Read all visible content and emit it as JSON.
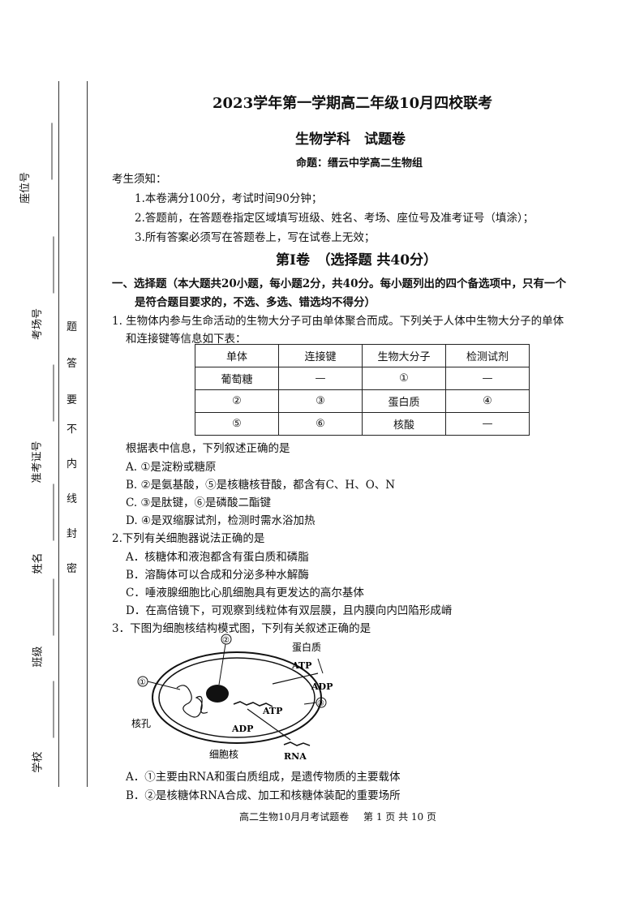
{
  "margin": {
    "fields": [
      "座位号",
      "考场号",
      "准考证号",
      "姓名",
      "班级",
      "学校"
    ],
    "seal_text": [
      "密",
      "封",
      "线",
      "内",
      "不",
      "要",
      "答",
      "题"
    ]
  },
  "header": {
    "title": "2023学年第一学期高二年级10月四校联考",
    "subtitle": "生物学科　试题卷",
    "author": "命题：缙云中学高二生物组"
  },
  "notice": {
    "heading": "考生须知：",
    "items": [
      "1.本卷满分100分，考试时间90分钟；",
      "2.答题前，在答题卷指定区域填写班级、姓名、考场、座位号及准考证号（填涂）；",
      "3.所有答案必须写在答题卷上，写在试卷上无效；"
    ]
  },
  "section": {
    "title": "第Ⅰ卷　（选择题 共40分）",
    "instructions_1": "一、选择题（本大题共20小题，每小题2分，共40分。每小题列出的四个备选项中，只有一个",
    "instructions_2": "是符合题目要求的，不选、多选、错选均不得分）"
  },
  "q1": {
    "stem_1": "1.  生物体内参与生命活动的生物大分子可由单体聚合而成。下列关于人体中生物大分子的单体",
    "stem_2": "和连接键等信息如下表：",
    "table": {
      "headers": [
        "单体",
        "连接键",
        "生物大分子",
        "检测试剂"
      ],
      "rows": [
        [
          "葡萄糖",
          "—",
          "①",
          "—"
        ],
        [
          "②",
          "③",
          "蛋白质",
          "④"
        ],
        [
          "⑤",
          "⑥",
          "核酸",
          "—"
        ]
      ]
    },
    "prompt": "根据表中信息，下列叙述正确的是",
    "options": [
      "A.  ①是淀粉或糖原",
      "B.  ②是氨基酸，⑤是核糖核苷酸，都含有C、H、O、N",
      "C.  ③是肽键，⑥是磷酸二酯键",
      "D.  ④是双缩脲试剂，检测时需水浴加热"
    ]
  },
  "q2": {
    "stem": "2.下列有关细胞器说法正确的是",
    "options": [
      "A．核糖体和液泡都含有蛋白质和磷脂",
      "B．溶酶体可以合成和分泌多种水解酶",
      "C．唾液腺细胞比心肌细胞具有更发达的高尔基体",
      "D．在高倍镜下，可观察到线粒体有双层膜，且内膜向内凹陷形成嵴"
    ]
  },
  "q3": {
    "stem": "3．下图为细胞核结构模式图，下列有关叙述正确的是",
    "diagram_labels": {
      "l1": "①",
      "l2": "②",
      "l3": "③",
      "protein": "蛋白质",
      "atp1": "ATP",
      "adp1": "ADP",
      "atp2": "ATP",
      "adp2": "ADP",
      "pore": "核孔",
      "nucleus": "细胞核",
      "rna": "RNA"
    },
    "options": [
      "A．①主要由RNA和蛋白质组成，是遗传物质的主要载体",
      "B．②是核糖体RNA合成、加工和核糖体装配的重要场所"
    ]
  },
  "footer": {
    "left": "高二生物10月月考试题卷",
    "right": "第 1 页 共 10 页"
  }
}
